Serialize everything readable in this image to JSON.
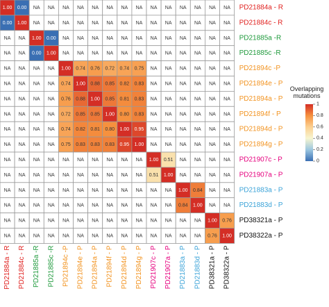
{
  "chart_data": {
    "type": "heatmap",
    "rows": [
      "PD21884a - R",
      "PD21884c - R",
      "PD21885a -R",
      "PD21885c -R",
      "PD21894c -P",
      "PD21894e - P",
      "PD21894a - P",
      "PD21894f - P",
      "PD21894d - P",
      "PD21894g - P",
      "PD21907c - P",
      "PD21907a - P",
      "PD21883a - P",
      "PD21883d - P",
      "PD38321a - P",
      "PD38322a - P"
    ],
    "columns": [
      "PD21884a - R",
      "PD21884c - R",
      "PD21885a -R",
      "PD21885c -R",
      "PD21894c -P",
      "PD21894e - P",
      "PD21894a - P",
      "PD21894f - P",
      "PD21894d - P",
      "PD21894g - P",
      "PD21907c - P",
      "PD21907a - P",
      "PD21883a - P",
      "PD21883d - P",
      "PD38321a - P",
      "PD38322a - P"
    ],
    "label_colors": [
      "#e0211f",
      "#e0211f",
      "#1f9a3c",
      "#1f9a3c",
      "#f29320",
      "#f29320",
      "#f29320",
      "#f29320",
      "#f29320",
      "#f29320",
      "#e6007e",
      "#e6007e",
      "#3ba3d8",
      "#3ba3d8",
      "#111111",
      "#111111"
    ],
    "cells": [
      [
        "1.00",
        "0.00",
        "NA",
        "NA",
        "NA",
        "NA",
        "NA",
        "NA",
        "NA",
        "NA",
        "NA",
        "NA",
        "NA",
        "NA",
        "NA",
        "NA"
      ],
      [
        "0.00",
        "1.00",
        "NA",
        "NA",
        "NA",
        "NA",
        "NA",
        "NA",
        "NA",
        "NA",
        "NA",
        "NA",
        "NA",
        "NA",
        "NA",
        "NA"
      ],
      [
        "NA",
        "NA",
        "1.00",
        "0.00",
        "NA",
        "NA",
        "NA",
        "NA",
        "NA",
        "NA",
        "NA",
        "NA",
        "NA",
        "NA",
        "NA",
        "NA"
      ],
      [
        "NA",
        "NA",
        "0.00",
        "1.00",
        "NA",
        "NA",
        "NA",
        "NA",
        "NA",
        "NA",
        "NA",
        "NA",
        "NA",
        "NA",
        "NA",
        "NA"
      ],
      [
        "NA",
        "NA",
        "NA",
        "NA",
        "1.00",
        "0.74",
        "0.76",
        "0.72",
        "0.74",
        "0.75",
        "NA",
        "NA",
        "NA",
        "NA",
        "NA",
        "NA"
      ],
      [
        "NA",
        "NA",
        "NA",
        "NA",
        "0.74",
        "1.00",
        "0.88",
        "0.85",
        "0.82",
        "0.83",
        "NA",
        "NA",
        "NA",
        "NA",
        "NA",
        "NA"
      ],
      [
        "NA",
        "NA",
        "NA",
        "NA",
        "0.76",
        "0.88",
        "1.00",
        "0.85",
        "0.81",
        "0.83",
        "NA",
        "NA",
        "NA",
        "NA",
        "NA",
        "NA"
      ],
      [
        "NA",
        "NA",
        "NA",
        "NA",
        "0.72",
        "0.85",
        "0.85",
        "1.00",
        "0.80",
        "0.83",
        "NA",
        "NA",
        "NA",
        "NA",
        "NA",
        "NA"
      ],
      [
        "NA",
        "NA",
        "NA",
        "NA",
        "0.74",
        "0.82",
        "0.81",
        "0.80",
        "1.00",
        "0.95",
        "NA",
        "NA",
        "NA",
        "NA",
        "NA",
        "NA"
      ],
      [
        "NA",
        "NA",
        "NA",
        "NA",
        "0.75",
        "0.83",
        "0.83",
        "0.83",
        "0.95",
        "1.00",
        "NA",
        "NA",
        "NA",
        "NA",
        "NA",
        "NA"
      ],
      [
        "NA",
        "NA",
        "NA",
        "NA",
        "NA",
        "NA",
        "NA",
        "NA",
        "NA",
        "NA",
        "1.00",
        "0.51",
        "NA",
        "NA",
        "NA",
        "NA"
      ],
      [
        "NA",
        "NA",
        "NA",
        "NA",
        "NA",
        "NA",
        "NA",
        "NA",
        "NA",
        "NA",
        "0.51",
        "1.00",
        "NA",
        "NA",
        "NA",
        "NA"
      ],
      [
        "NA",
        "NA",
        "NA",
        "NA",
        "NA",
        "NA",
        "NA",
        "NA",
        "NA",
        "NA",
        "NA",
        "NA",
        "1.00",
        "0.84",
        "NA",
        "NA"
      ],
      [
        "NA",
        "NA",
        "NA",
        "NA",
        "NA",
        "NA",
        "NA",
        "NA",
        "NA",
        "NA",
        "NA",
        "NA",
        "0.84",
        "1.00",
        "NA",
        "NA"
      ],
      [
        "NA",
        "NA",
        "NA",
        "NA",
        "NA",
        "NA",
        "NA",
        "NA",
        "NA",
        "NA",
        "NA",
        "NA",
        "NA",
        "NA",
        "1.00",
        "0.76"
      ],
      [
        "NA",
        "NA",
        "NA",
        "NA",
        "NA",
        "NA",
        "NA",
        "NA",
        "NA",
        "NA",
        "NA",
        "NA",
        "NA",
        "NA",
        "0.76",
        "1.00"
      ]
    ],
    "colorbar": {
      "title": "Overlapping mutations",
      "range": [
        0,
        1
      ],
      "ticks": [
        "0",
        "0.2",
        "0.4",
        "0.6",
        "0.8",
        "1"
      ],
      "stops": [
        "#3a6fb3",
        "#9cc7e0",
        "#f7f5d0",
        "#fcd090",
        "#f6913e",
        "#d42e25"
      ]
    },
    "na_color": "#ffffff",
    "grid_color": "#9a9a9a"
  }
}
